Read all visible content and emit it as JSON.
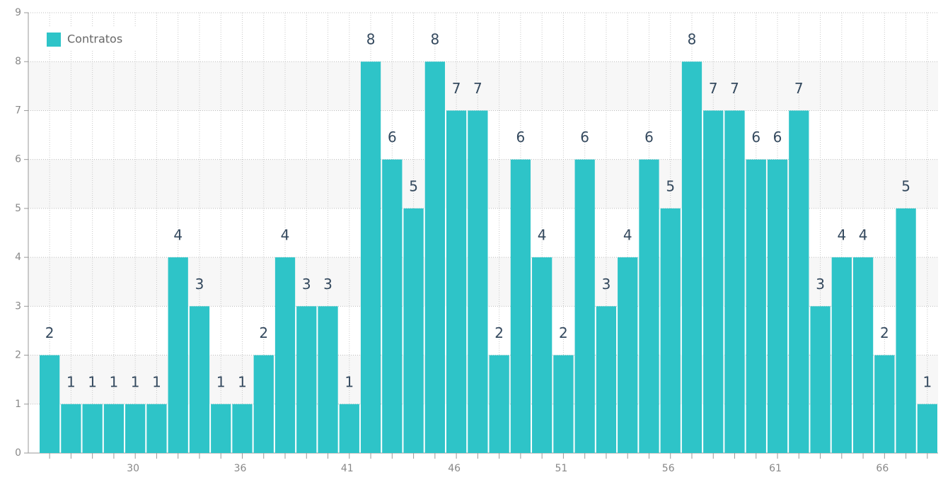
{
  "chart_data": {
    "type": "bar",
    "categories": [
      null,
      null,
      null,
      null,
      "30",
      null,
      null,
      null,
      null,
      "36",
      null,
      null,
      null,
      null,
      "41",
      null,
      null,
      null,
      null,
      "46",
      null,
      null,
      null,
      null,
      "51",
      null,
      null,
      null,
      null,
      "56",
      null,
      null,
      null,
      null,
      "61",
      null,
      null,
      null,
      null,
      "66",
      null,
      null
    ],
    "series": [
      {
        "name": "Contratos",
        "color": "#2ec4c8",
        "values": [
          2,
          1,
          1,
          1,
          1,
          1,
          4,
          3,
          1,
          1,
          2,
          4,
          3,
          3,
          1,
          8,
          6,
          5,
          8,
          7,
          7,
          2,
          6,
          4,
          2,
          6,
          3,
          4,
          6,
          5,
          8,
          7,
          7,
          6,
          6,
          7,
          3,
          4,
          4,
          2,
          5,
          1
        ]
      }
    ],
    "ylim": [
      0,
      9
    ],
    "yticks": [
      0,
      1,
      2,
      3,
      4,
      5,
      6,
      7,
      8,
      9
    ],
    "grid": true,
    "legend": "top-left"
  }
}
